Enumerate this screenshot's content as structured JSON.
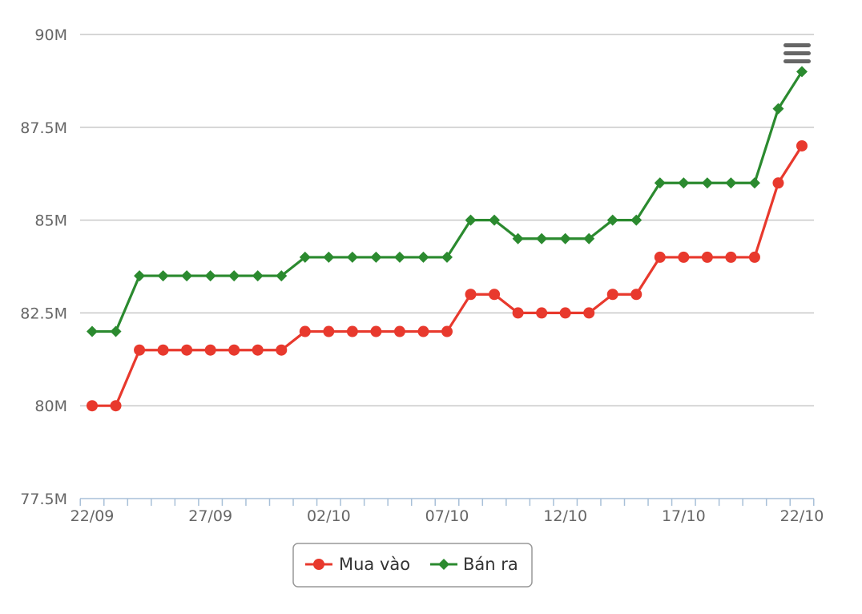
{
  "chart_data": {
    "type": "line",
    "title": "",
    "xlabel": "",
    "ylabel": "",
    "x": [
      "22/09",
      "23/09",
      "24/09",
      "25/09",
      "26/09",
      "27/09",
      "28/09",
      "29/09",
      "30/09",
      "01/10",
      "02/10",
      "03/10",
      "04/10",
      "05/10",
      "06/10",
      "07/10",
      "08/10",
      "09/10",
      "10/10",
      "11/10",
      "12/10",
      "13/10",
      "14/10",
      "15/10",
      "16/10",
      "17/10",
      "18/10",
      "19/10",
      "20/10",
      "21/10",
      "22/10"
    ],
    "x_tick_labels": [
      "22/09",
      "27/09",
      "02/10",
      "07/10",
      "12/10",
      "17/10",
      "22/10"
    ],
    "y_ticks": [
      77.5,
      80,
      82.5,
      85,
      87.5,
      90
    ],
    "y_tick_labels": [
      "77.5M",
      "80M",
      "82.5M",
      "85M",
      "87.5M",
      "90M"
    ],
    "ylim": [
      77.5,
      90
    ],
    "grid": true,
    "legend_position": "bottom-center",
    "series": [
      {
        "name": "Mua vào",
        "color": "#e8392d",
        "marker": "circle",
        "values": [
          80,
          80,
          81.5,
          81.5,
          81.5,
          81.5,
          81.5,
          81.5,
          81.5,
          82,
          82,
          82,
          82,
          82,
          82,
          82,
          83,
          83,
          82.5,
          82.5,
          82.5,
          82.5,
          83,
          83,
          84,
          84,
          84,
          84,
          84,
          86,
          87
        ]
      },
      {
        "name": "Bán ra",
        "color": "#2b8a2f",
        "marker": "diamond",
        "values": [
          82,
          82,
          83.5,
          83.5,
          83.5,
          83.5,
          83.5,
          83.5,
          83.5,
          84,
          84,
          84,
          84,
          84,
          84,
          84,
          85,
          85,
          84.5,
          84.5,
          84.5,
          84.5,
          85,
          85,
          86,
          86,
          86,
          86,
          86,
          88,
          89
        ]
      }
    ]
  },
  "toolbar": {
    "menu_icon": "hamburger-menu-icon"
  }
}
